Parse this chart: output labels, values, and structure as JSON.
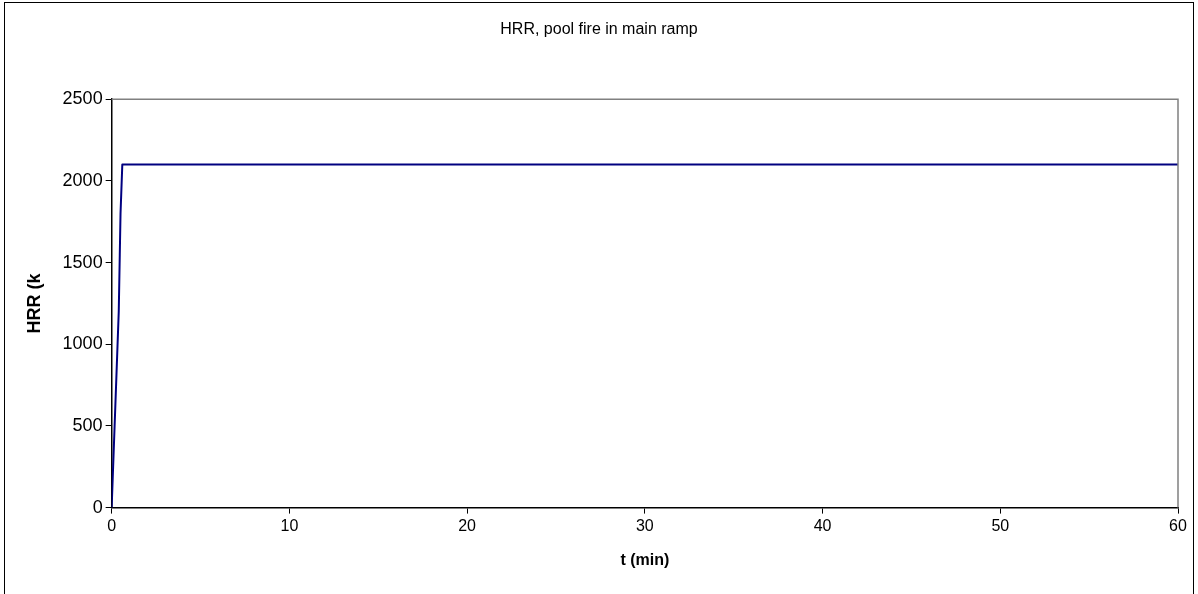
{
  "chart_data": {
    "type": "line",
    "title": "HRR, pool fire in main ramp",
    "xlabel": "t (min)",
    "ylabel": "HRR (k",
    "x": [
      0,
      0.4,
      0.5,
      0.6,
      60
    ],
    "series": [
      {
        "color": "#000080",
        "values": [
          0,
          1200,
          1800,
          2100,
          2100
        ]
      }
    ],
    "xlim": [
      0,
      60
    ],
    "xticks": [
      0,
      10,
      20,
      30,
      40,
      50,
      60
    ],
    "ylim": [
      0,
      2500
    ],
    "yticks": [
      0,
      500,
      1000,
      1500,
      2000,
      2500
    ],
    "grid": false,
    "legend": false,
    "marker": "none",
    "line_style": "solid"
  }
}
